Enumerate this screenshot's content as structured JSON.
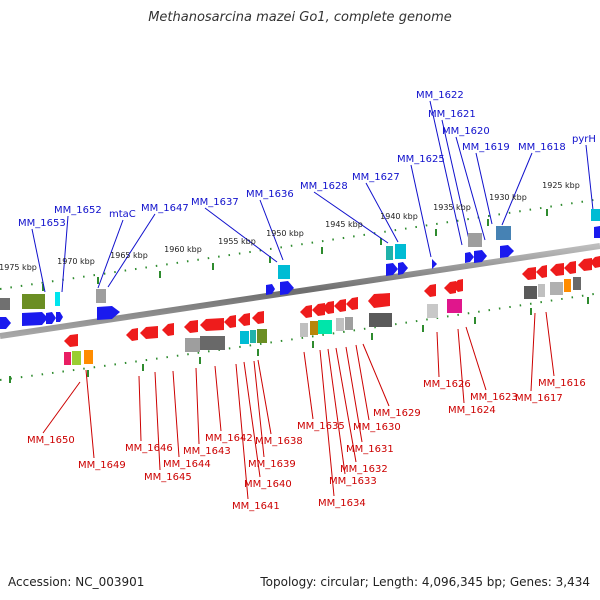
{
  "title": "Methanosarcina mazei Go1, complete genome",
  "accession": "Accession: NC_003901",
  "summary": "Topology: circular; Length: 4,096,345 bp; Genes: 3,434",
  "colors": {
    "forward_label": "#1010cc",
    "reverse_label": "#cc0000",
    "backbone": "#808080",
    "tick": "#2e8b2e"
  },
  "ticks": [
    "1975 kbp",
    "1970 kbp",
    "1965 kbp",
    "1960 kbp",
    "1955 kbp",
    "1950 kbp",
    "1945 kbp",
    "1940 kbp",
    "1935 kbp",
    "1930 kbp",
    "1925 kbp"
  ],
  "forward_genes": [
    "MM_1653",
    "MM_1652",
    "mtaC",
    "MM_1647",
    "MM_1637",
    "MM_1636",
    "MM_1628",
    "MM_1627",
    "MM_1625",
    "MM_1622",
    "MM_1621",
    "MM_1620",
    "MM_1619",
    "MM_1618",
    "pyrH"
  ],
  "reverse_genes": [
    "MM_1650",
    "MM_1649",
    "MM_1646",
    "MM_1645",
    "MM_1644",
    "MM_1643",
    "MM_1642",
    "MM_1641",
    "MM_1640",
    "MM_1639",
    "MM_1638",
    "MM_1635",
    "MM_1634",
    "MM_1633",
    "MM_1632",
    "MM_1631",
    "MM_1630",
    "MM_1629",
    "MM_1626",
    "MM_1624",
    "MM_1623",
    "MM_1617",
    "MM_1616"
  ]
}
